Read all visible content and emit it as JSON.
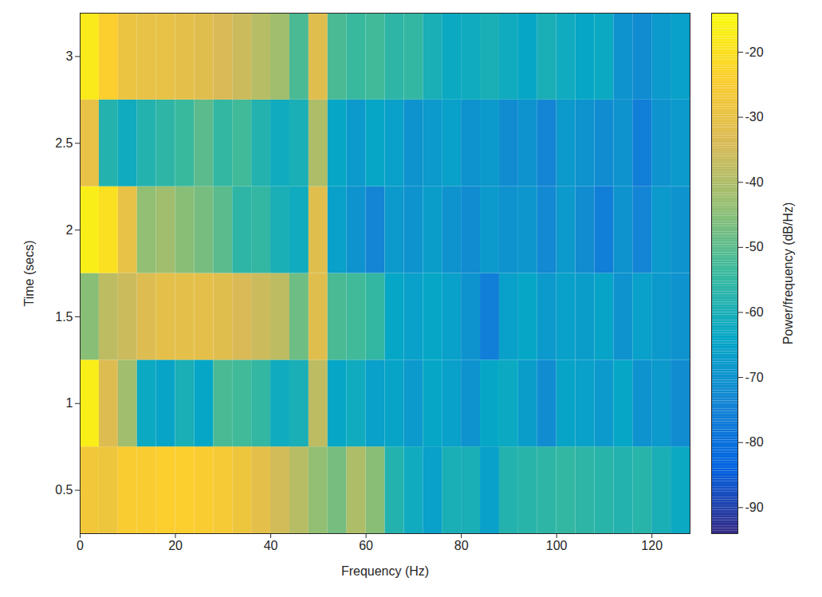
{
  "chart_data": {
    "type": "heatmap",
    "xlabel": "Frequency (Hz)",
    "ylabel": "Time (secs)",
    "xlim": [
      0,
      128
    ],
    "xticks": [
      0,
      20,
      40,
      60,
      80,
      100,
      120
    ],
    "ylim": [
      0.25,
      3.25
    ],
    "yticks": [
      0.5,
      1,
      1.5,
      2,
      2.5,
      3
    ],
    "frequency_bins": [
      0,
      4,
      8,
      12,
      16,
      20,
      24,
      28,
      32,
      36,
      40,
      44,
      48,
      52,
      56,
      60,
      64,
      68,
      72,
      76,
      80,
      84,
      88,
      92,
      96,
      100,
      104,
      108,
      112,
      116,
      120,
      124,
      128
    ],
    "time_bins": [
      0.25,
      0.75,
      1.25,
      1.75,
      2.25,
      2.75,
      3.25
    ],
    "values": [
      [
        -27,
        -28,
        -25,
        -25,
        -24,
        -24,
        -25,
        -26,
        -28,
        -31,
        -35,
        -39,
        -44,
        -47,
        -40,
        -45,
        -58,
        -62,
        -66,
        -60,
        -60,
        -66,
        -58,
        -57,
        -56,
        -55,
        -56,
        -57,
        -58,
        -57,
        -60,
        -63
      ],
      [
        -17,
        -33,
        -42,
        -63,
        -65,
        -60,
        -64,
        -52,
        -53,
        -55,
        -62,
        -60,
        -38,
        -64,
        -62,
        -66,
        -65,
        -68,
        -64,
        -66,
        -70,
        -64,
        -63,
        -67,
        -72,
        -65,
        -66,
        -68,
        -64,
        -70,
        -68,
        -72
      ],
      [
        -45,
        -38,
        -36,
        -33,
        -31,
        -31,
        -31,
        -32,
        -34,
        -36,
        -38,
        -48,
        -32,
        -52,
        -53,
        -55,
        -64,
        -66,
        -64,
        -66,
        -70,
        -76,
        -66,
        -64,
        -68,
        -66,
        -67,
        -65,
        -70,
        -66,
        -68,
        -70
      ],
      [
        -17,
        -20,
        -30,
        -44,
        -42,
        -45,
        -47,
        -50,
        -56,
        -55,
        -60,
        -62,
        -32,
        -66,
        -70,
        -74,
        -68,
        -70,
        -67,
        -70,
        -72,
        -68,
        -70,
        -69,
        -73,
        -68,
        -72,
        -76,
        -70,
        -74,
        -68,
        -70
      ],
      [
        -30,
        -58,
        -62,
        -58,
        -56,
        -54,
        -50,
        -55,
        -53,
        -58,
        -62,
        -60,
        -40,
        -64,
        -68,
        -64,
        -66,
        -70,
        -68,
        -66,
        -70,
        -68,
        -72,
        -70,
        -74,
        -68,
        -70,
        -72,
        -70,
        -76,
        -70,
        -68
      ],
      [
        -18,
        -24,
        -29,
        -30,
        -30,
        -31,
        -32,
        -34,
        -36,
        -39,
        -42,
        -52,
        -32,
        -52,
        -54,
        -53,
        -56,
        -55,
        -60,
        -63,
        -62,
        -60,
        -62,
        -64,
        -60,
        -62,
        -64,
        -63,
        -70,
        -72,
        -68,
        -66
      ]
    ],
    "colorbar": {
      "label": "Power/frequency (dB/Hz)",
      "range": [
        -94,
        -14
      ],
      "ticks": [
        -90,
        -80,
        -70,
        -60,
        -50,
        -40,
        -30,
        -20
      ]
    }
  }
}
